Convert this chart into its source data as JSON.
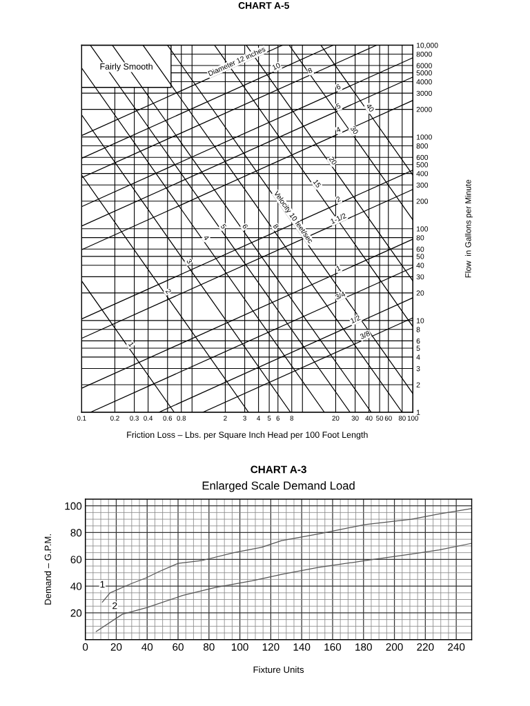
{
  "chart_data": [
    {
      "type": "line",
      "title": "CHART A-5",
      "xlabel": "Friction Loss – Lbs. per Square Inch Head per 100 Foot Length",
      "ylabel": "Flow  in Gallons per Minute",
      "log": "xy",
      "xlim": [
        0.1,
        100
      ],
      "ylim": [
        1,
        10000
      ],
      "xticks": [
        0.1,
        0.2,
        0.3,
        0.4,
        0.6,
        0.8,
        {
          "value": 1,
          "label": null
        },
        2,
        3,
        4,
        5,
        6,
        8,
        {
          "value": 10,
          "label": null
        },
        20,
        30,
        40,
        50,
        60,
        80,
        100
      ],
      "yticks": [
        1,
        2,
        3,
        4,
        5,
        6,
        8,
        10,
        20,
        30,
        40,
        50,
        60,
        80,
        100,
        200,
        300,
        400,
        500,
        600,
        800,
        1000,
        2000,
        3000,
        4000,
        5000,
        6000,
        8000,
        {
          "value": 10000,
          "label": "10,000"
        }
      ],
      "grid": true,
      "annotations": [
        "Fairly Smooth"
      ],
      "series": [
        {
          "name": "Diameter 12 inches",
          "color": "#000000",
          "x": [
            0.1,
            6.6
          ],
          "values": [
            1035,
            10000
          ]
        },
        {
          "name": "10",
          "color": "#000000",
          "x": [
            0.1,
            19
          ],
          "values": [
            585,
            10000
          ]
        },
        {
          "name": "8",
          "color": "#000000",
          "x": [
            0.1,
            47
          ],
          "values": [
            360,
            10000
          ]
        },
        {
          "name": "6",
          "color": "#000000",
          "x": [
            0.1,
            100
          ],
          "values": [
            174,
            7300
          ]
        },
        {
          "name": "5",
          "color": "#000000",
          "x": [
            0.1,
            100
          ],
          "values": [
            107,
            4500
          ]
        },
        {
          "name": "4",
          "color": "#000000",
          "x": [
            0.1,
            100
          ],
          "values": [
            59,
            2500
          ]
        },
        {
          "name": "2",
          "color": "#000000",
          "x": [
            0.1,
            100
          ],
          "values": [
            10.4,
            435
          ]
        },
        {
          "name": "1-1/2",
          "color": "#000000",
          "x": [
            0.1,
            100
          ],
          "values": [
            6.4,
            268
          ]
        },
        {
          "name": "1",
          "color": "#000000",
          "x": [
            0.1,
            100
          ],
          "values": [
            1.83,
            77
          ]
        },
        {
          "name": "3/4",
          "color": "#000000",
          "x": [
            0.12,
            100
          ],
          "values": [
            1,
            38
          ]
        },
        {
          "name": "1/2",
          "color": "#000000",
          "x": [
            0.5,
            100
          ],
          "values": [
            1,
            17.7
          ]
        },
        {
          "name": "3/8",
          "color": "#000000",
          "x": [
            1.25,
            100
          ],
          "values": [
            1,
            10.7
          ]
        },
        {
          "name": "1",
          "color": "#000000",
          "x": [
            0.1,
            0.69
          ],
          "values": [
            27,
            1
          ]
        },
        {
          "name": "2",
          "color": "#000000",
          "x": [
            0.1,
            3.25
          ],
          "values": [
            385,
            1
          ]
        },
        {
          "name": "3",
          "color": "#000000",
          "x": [
            0.1,
            7.8
          ],
          "values": [
            1740,
            1
          ]
        },
        {
          "name": "4",
          "color": "#000000",
          "x": [
            0.1,
            15.8
          ],
          "values": [
            5650,
            1
          ]
        },
        {
          "name": "5",
          "color": "#000000",
          "x": [
            0.12,
            27
          ],
          "values": [
            10000,
            1
          ]
        },
        {
          "name": "6",
          "color": "#000000",
          "x": [
            0.19,
            42
          ],
          "values": [
            10000,
            1
          ]
        },
        {
          "name": "8",
          "color": "#000000",
          "x": [
            0.36,
            80
          ],
          "values": [
            10000,
            1
          ]
        },
        {
          "name": "Velocity 10 feet/sec",
          "color": "#000000",
          "x": [
            0.6,
            100
          ],
          "values": [
            10000,
            1.6
          ]
        },
        {
          "name": "15",
          "color": "#000000",
          "x": [
            1.6,
            100
          ],
          "values": [
            10000,
            8.6
          ]
        },
        {
          "name": "20",
          "color": "#000000",
          "x": [
            3.1,
            100
          ],
          "values": [
            10000,
            27
          ]
        },
        {
          "name": "30",
          "color": "#000000",
          "x": [
            7.6,
            100
          ],
          "values": [
            10000,
            125
          ]
        },
        {
          "name": "40",
          "color": "#000000",
          "x": [
            14.7,
            100
          ],
          "values": [
            10000,
            385
          ]
        }
      ]
    },
    {
      "type": "line",
      "title": "CHART A-3",
      "subtitle": "Enlarged Scale Demand Load",
      "xlabel": "Fixture Units",
      "ylabel": "Demand – G.P.M.",
      "xlim": [
        0,
        250
      ],
      "ylim": [
        0,
        105
      ],
      "xticks": [
        0,
        20,
        40,
        60,
        80,
        100,
        120,
        140,
        160,
        180,
        200,
        220,
        240
      ],
      "yticks": [
        20,
        40,
        60,
        80,
        100
      ],
      "grid": true,
      "series": [
        {
          "name": "1",
          "color": "#555555",
          "x": [
            11,
            16,
            30,
            39,
            48,
            60,
            75,
            96,
            114,
            127,
            151,
            181,
            211,
            229,
            250
          ],
          "values": [
            28,
            35,
            42,
            46,
            51,
            57,
            59,
            65,
            69,
            74,
            79,
            86,
            90,
            94,
            98
          ]
        },
        {
          "name": "2",
          "color": "#555555",
          "x": [
            7,
            24,
            40,
            63,
            84,
            108,
            128,
            151,
            181,
            211,
            229,
            250
          ],
          "values": [
            6,
            19,
            24,
            33,
            39,
            44,
            49,
            54,
            59,
            64,
            67,
            72
          ]
        }
      ]
    }
  ]
}
